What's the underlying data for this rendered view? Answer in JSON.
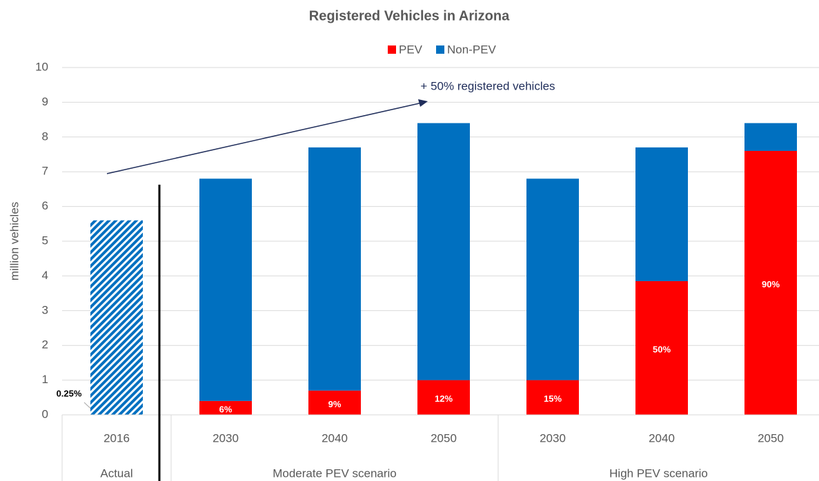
{
  "chart_data": {
    "type": "stacked_bar",
    "title": "Registered Vehicles in Arizona",
    "y_label": "million vehicles",
    "groups": [
      {
        "name": "Actual",
        "categories": [
          "2016"
        ],
        "hatched": true
      },
      {
        "name": "Moderate PEV scenario",
        "categories": [
          "2030",
          "2040",
          "2050"
        ]
      },
      {
        "name": "High PEV scenario",
        "categories": [
          "2030",
          "2040",
          "2050"
        ]
      }
    ],
    "series": [
      {
        "name": "PEV",
        "color": "#ff0000",
        "values": [
          0.01,
          0.4,
          0.7,
          1.0,
          1.0,
          3.85,
          7.6
        ],
        "share_labels": [
          "0.25%",
          "6%",
          "9%",
          "12%",
          "15%",
          "50%",
          "90%"
        ]
      },
      {
        "name": "Non-PEV",
        "color": "#0070c0",
        "values": [
          5.59,
          6.4,
          7.0,
          7.4,
          5.8,
          3.85,
          0.8
        ]
      }
    ],
    "annotation": "+ 50% registered vehicles",
    "ylim": [
      0,
      10
    ],
    "yticks": [
      0,
      1,
      2,
      3,
      4,
      5,
      6,
      7,
      8,
      9,
      10
    ],
    "grid": true,
    "legend": "top"
  }
}
